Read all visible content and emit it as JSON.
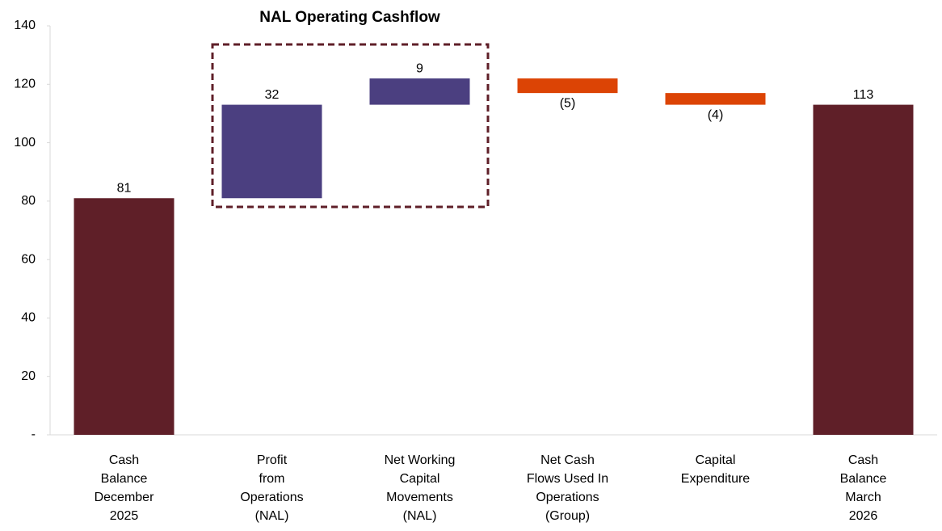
{
  "chart_data": {
    "type": "waterfall",
    "title": "NAL Operating Cashflow",
    "categories": [
      "Cash\nBalance\nDecember\n2025",
      "Profit\nfrom\nOperations\n(NAL)",
      "Net Working\nCapital\nMovements\n(NAL)",
      "Net Cash\nFlows Used In\nOperations\n(Group)",
      "Capital\nExpenditure",
      "Cash\nBalance\nMarch\n2026"
    ],
    "values": [
      81,
      32,
      9,
      -5,
      -4,
      113
    ],
    "value_labels": [
      "81",
      "32",
      "9",
      "(5)",
      "(4)",
      "113"
    ],
    "is_total": [
      true,
      false,
      false,
      false,
      false,
      true
    ],
    "total_color": "#5f1f28",
    "increase_color": "#4b3f80",
    "decrease_color": "#dc4405",
    "ylim": [
      0,
      140
    ],
    "yticks": [
      {
        "value": 0,
        "label": "-"
      },
      20,
      40,
      60,
      80,
      100,
      120,
      140
    ],
    "grid": false
  }
}
